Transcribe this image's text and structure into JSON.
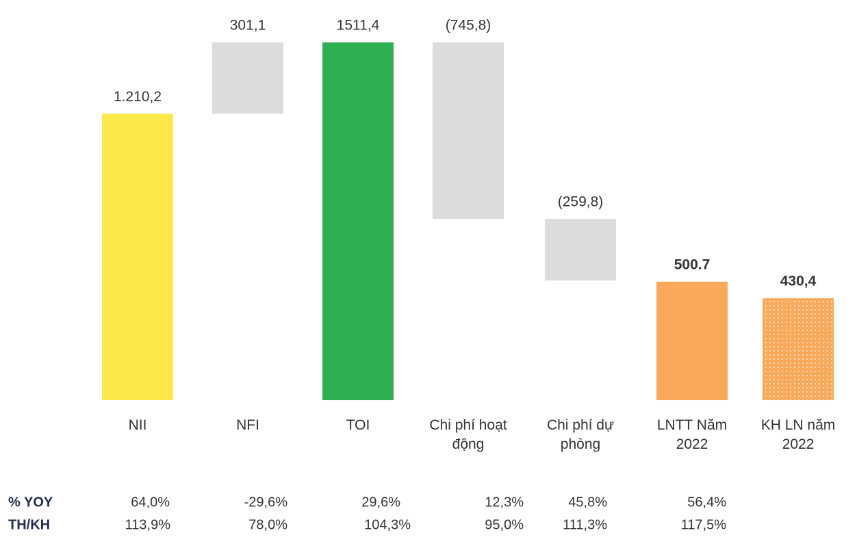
{
  "chart_data": {
    "type": "waterfall",
    "categories": [
      "NII",
      "NFI",
      "TOI",
      "Chi phí hoạt động",
      "Chi phí dự phòng",
      "LNTT Năm 2022",
      "KH LN năm 2022"
    ],
    "values": [
      1210.2,
      301.1,
      1511.4,
      -745.8,
      -259.8,
      500.7,
      430.4
    ],
    "value_labels": [
      "1.210,2",
      "301,1",
      "1511,4",
      "(745,8)",
      "(259,8)",
      "500.7",
      "430,4"
    ],
    "totals": [
      false,
      false,
      true,
      false,
      false,
      true,
      true
    ],
    "colors": [
      "#fde84a",
      "#dcdcdc",
      "#2eb150",
      "#dcdcdc",
      "#dcdcdc",
      "#f9a95a",
      "#f9a95a"
    ],
    "table": {
      "rows": [
        {
          "label": "% YOY",
          "values": [
            "64,0%",
            "-29,6%",
            "29,6%",
            "12,3%",
            "45,8%",
            "56,4%"
          ]
        },
        {
          "label": "TH/KH",
          "values": [
            "113,9%",
            "78,0%",
            "104,3%",
            "95,0%",
            "111,3%",
            "117,5%"
          ]
        }
      ]
    }
  }
}
